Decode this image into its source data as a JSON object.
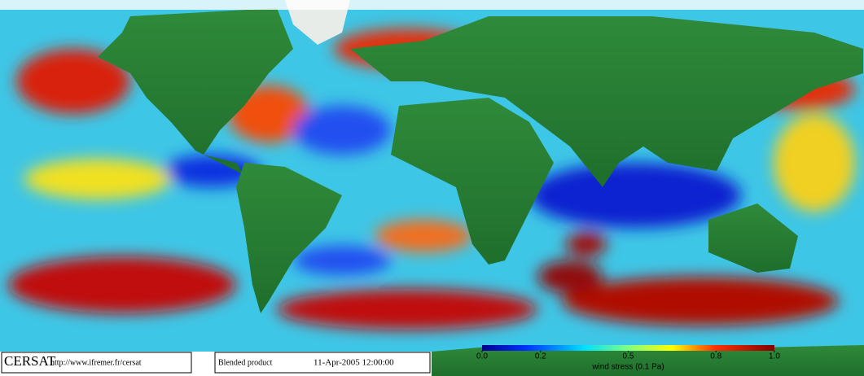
{
  "footer": {
    "logo": "CERSAT",
    "url": "http://www.ifremer.fr/cersat",
    "product": "Blended product",
    "date": "11-Apr-2005 12:00:00"
  },
  "colorbar": {
    "lim": [
      0,
      1
    ],
    "ticks": [
      {
        "value": 0,
        "label": "0.0"
      },
      0.2,
      0.5,
      0.8,
      {
        "value": 1,
        "label": "1.0"
      }
    ],
    "label": "wind stress (0.1 Pa)"
  }
}
